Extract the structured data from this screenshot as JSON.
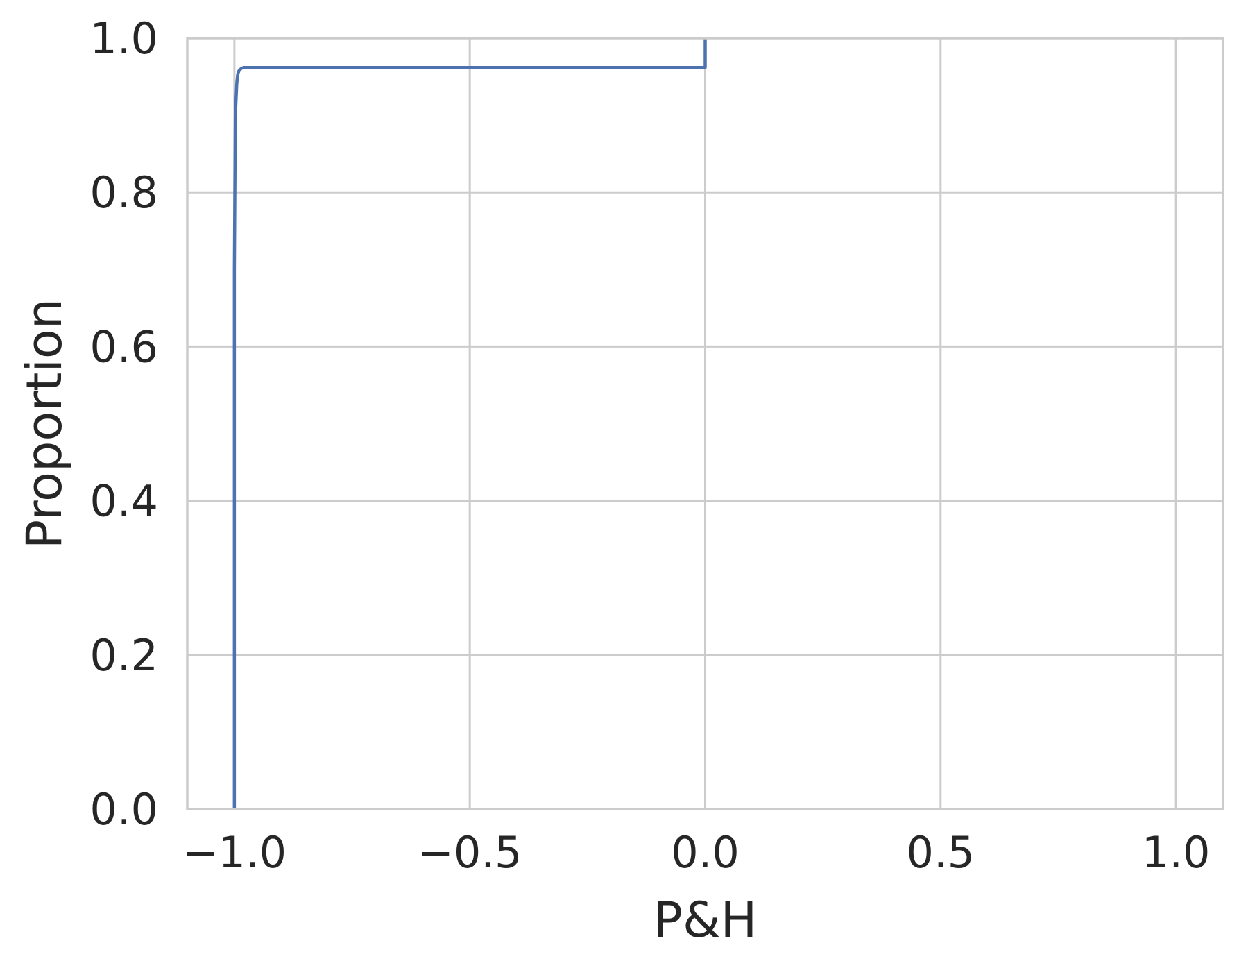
{
  "chart_data": {
    "type": "line",
    "subtype": "ecdf",
    "title": "",
    "xlabel": "P&H",
    "ylabel": "Proportion",
    "xlim": [
      -1.1,
      1.1
    ],
    "ylim": [
      0.0,
      1.0
    ],
    "x_ticks": [
      -1.0,
      -0.5,
      0.0,
      0.5,
      1.0
    ],
    "x_tick_labels": [
      "−1.0",
      "−0.5",
      "0.0",
      "0.5",
      "1.0"
    ],
    "y_ticks": [
      0.0,
      0.2,
      0.4,
      0.6,
      0.8,
      1.0
    ],
    "y_tick_labels": [
      "0.0",
      "0.2",
      "0.4",
      "0.6",
      "0.8",
      "1.0"
    ],
    "grid": true,
    "legend": "none",
    "series": [
      {
        "color": "#4c72b0",
        "x": [
          -1.0,
          -1.0,
          -0.998,
          -0.995,
          -0.993,
          -0.99,
          -0.985,
          -0.98,
          0.0,
          0.0
        ],
        "y": [
          0.0,
          0.7,
          0.9,
          0.94,
          0.953,
          0.958,
          0.961,
          0.962,
          0.962,
          1.0
        ]
      }
    ]
  }
}
